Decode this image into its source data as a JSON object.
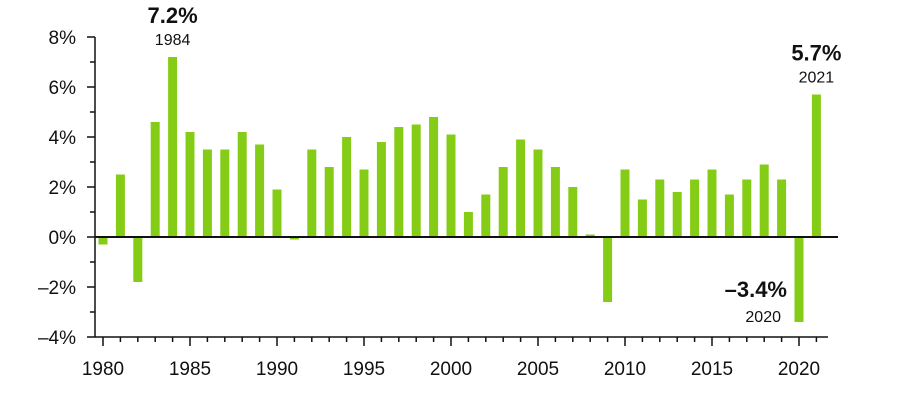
{
  "colors": {
    "bar": "#84cc16",
    "axis": "#111111",
    "text": "#111111"
  },
  "chart_data": {
    "type": "bar",
    "title": "",
    "xlabel": "",
    "ylabel": "",
    "ylim": [
      -4,
      8
    ],
    "xlim": [
      1980,
      2021
    ],
    "y_ticks": [
      -4,
      -2,
      0,
      2,
      4,
      6,
      8
    ],
    "y_tick_labels": [
      "–4%",
      "–2%",
      "0%",
      "2%",
      "4%",
      "6%",
      "8%"
    ],
    "x_ticks": [
      1980,
      1985,
      1990,
      1995,
      2000,
      2005,
      2010,
      2015,
      2020
    ],
    "x_tick_labels": [
      "1980",
      "1985",
      "1990",
      "1995",
      "2000",
      "2005",
      "2010",
      "2015",
      "2020"
    ],
    "grid": false,
    "categories": [
      1980,
      1981,
      1982,
      1983,
      1984,
      1985,
      1986,
      1987,
      1988,
      1989,
      1990,
      1991,
      1992,
      1993,
      1994,
      1995,
      1996,
      1997,
      1998,
      1999,
      2000,
      2001,
      2002,
      2003,
      2004,
      2005,
      2006,
      2007,
      2008,
      2009,
      2010,
      2011,
      2012,
      2013,
      2014,
      2015,
      2016,
      2017,
      2018,
      2019,
      2020,
      2021
    ],
    "values": [
      -0.3,
      2.5,
      -1.8,
      4.6,
      7.2,
      4.2,
      3.5,
      3.5,
      4.2,
      3.7,
      1.9,
      -0.1,
      3.5,
      2.8,
      4.0,
      2.7,
      3.8,
      4.4,
      4.5,
      4.8,
      4.1,
      1.0,
      1.7,
      2.8,
      3.9,
      3.5,
      2.8,
      2.0,
      0.1,
      -2.6,
      2.7,
      1.5,
      2.3,
      1.8,
      2.3,
      2.7,
      1.7,
      2.3,
      2.9,
      2.3,
      -3.4,
      5.7
    ],
    "annotations": [
      {
        "year": 1984,
        "value_text": "7.2%",
        "year_text": "1984"
      },
      {
        "year": 2021,
        "value_text": "5.7%",
        "year_text": "2021"
      },
      {
        "year": 2020,
        "value_text": "–3.4%",
        "year_text": "2020"
      }
    ]
  }
}
